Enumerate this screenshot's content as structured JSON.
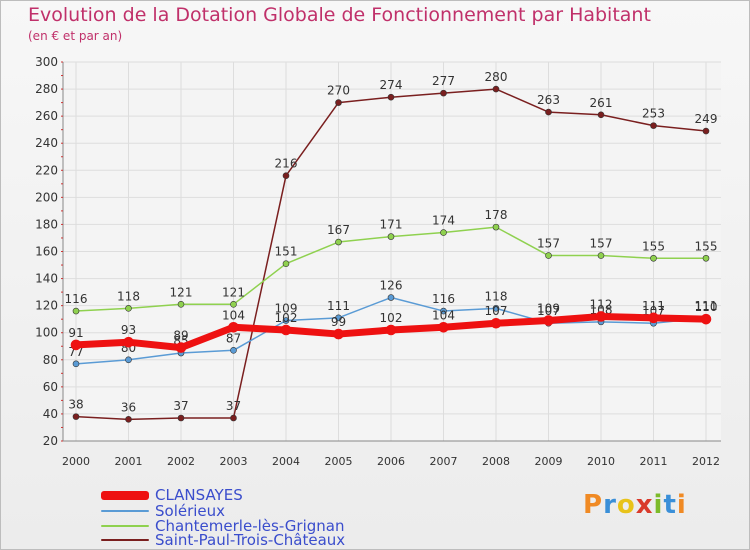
{
  "title": "Evolution de la Dotation Globale de Fonctionnement par Habitant",
  "subtitle": "(en € et par an)",
  "logo": {
    "text": "Proxiti",
    "colors": [
      "#f08a24",
      "#3a8fd8",
      "#e8c31a",
      "#d93a2b",
      "#7cbb2a",
      "#3a8fd8",
      "#f08a24"
    ]
  },
  "chart_data": {
    "type": "line",
    "title": "Evolution de la Dotation Globale de Fonctionnement par Habitant",
    "subtitle": "(en € et par an)",
    "xlabel": "",
    "ylabel": "",
    "x": [
      "2000",
      "2001",
      "2002",
      "2003",
      "2004",
      "2005",
      "2006",
      "2007",
      "2008",
      "2009",
      "2010",
      "2011",
      "2012"
    ],
    "ylim": [
      20,
      300
    ],
    "yticks": [
      20,
      40,
      60,
      80,
      100,
      120,
      140,
      160,
      180,
      200,
      220,
      240,
      260,
      280,
      300
    ],
    "grid": true,
    "legend_position": "bottom-left",
    "series": [
      {
        "name": "Saint-Paul-Trois-Châteaux",
        "color": "#7a1f1f",
        "width": 1.5,
        "values": [
          38,
          36,
          37,
          37,
          216,
          270,
          274,
          277,
          280,
          263,
          261,
          253,
          249
        ]
      },
      {
        "name": "Chantemerle-lès-Grignan",
        "color": "#8fd14f",
        "width": 1.5,
        "values": [
          116,
          118,
          121,
          121,
          151,
          167,
          171,
          174,
          178,
          157,
          157,
          155,
          155
        ]
      },
      {
        "name": "Solérieux",
        "color": "#5a9bd5",
        "width": 1.5,
        "values": [
          77,
          80,
          85,
          87,
          109,
          111,
          126,
          116,
          118,
          107,
          108,
          107,
          111
        ]
      },
      {
        "name": "CLANSAYES",
        "color": "#ee1111",
        "width": 7,
        "values": [
          91,
          93,
          89,
          104,
          102,
          99,
          102,
          104,
          107,
          109,
          112,
          111,
          110
        ]
      }
    ],
    "legend": [
      {
        "name": "CLANSAYES",
        "color": "#ee1111"
      },
      {
        "name": "Solérieux",
        "color": "#5a9bd5"
      },
      {
        "name": "Chantemerle-lès-Grignan",
        "color": "#8fd14f"
      },
      {
        "name": "Saint-Paul-Trois-Châteaux",
        "color": "#7a1f1f"
      }
    ]
  }
}
